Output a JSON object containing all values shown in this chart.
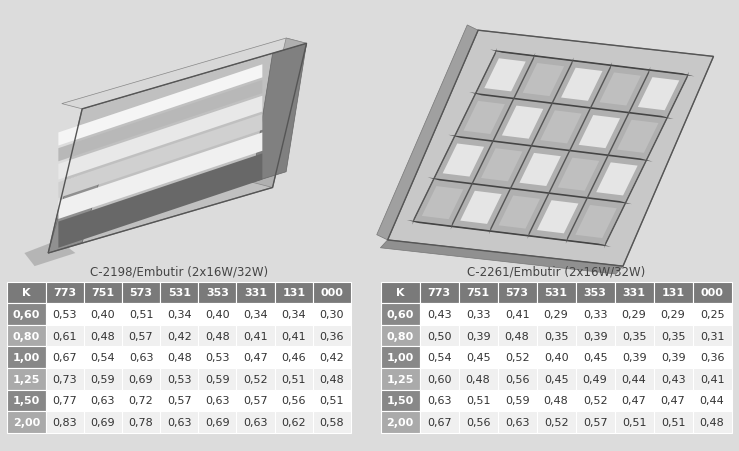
{
  "title1": "C-2198/Embutir (2x16W/32W)",
  "title2": "C-2261/Embutir (2x16W/32W)",
  "headers": [
    "K",
    "773",
    "751",
    "573",
    "531",
    "353",
    "331",
    "131",
    "000"
  ],
  "k_values": [
    "0,60",
    "0,80",
    "1,00",
    "1,25",
    "1,50",
    "2,00"
  ],
  "table1_data": [
    [
      "0,53",
      "0,40",
      "0,51",
      "0,34",
      "0,40",
      "0,34",
      "0,34",
      "0,30"
    ],
    [
      "0,61",
      "0,48",
      "0,57",
      "0,42",
      "0,48",
      "0,41",
      "0,41",
      "0,36"
    ],
    [
      "0,67",
      "0,54",
      "0,63",
      "0,48",
      "0,53",
      "0,47",
      "0,46",
      "0,42"
    ],
    [
      "0,73",
      "0,59",
      "0,69",
      "0,53",
      "0,59",
      "0,52",
      "0,51",
      "0,48"
    ],
    [
      "0,77",
      "0,63",
      "0,72",
      "0,57",
      "0,63",
      "0,57",
      "0,56",
      "0,51"
    ],
    [
      "0,83",
      "0,69",
      "0,78",
      "0,63",
      "0,69",
      "0,63",
      "0,62",
      "0,58"
    ]
  ],
  "table2_data": [
    [
      "0,43",
      "0,33",
      "0,41",
      "0,29",
      "0,33",
      "0,29",
      "0,29",
      "0,25"
    ],
    [
      "0,50",
      "0,39",
      "0,48",
      "0,35",
      "0,39",
      "0,35",
      "0,35",
      "0,31"
    ],
    [
      "0,54",
      "0,45",
      "0,52",
      "0,40",
      "0,45",
      "0,39",
      "0,39",
      "0,36"
    ],
    [
      "0,60",
      "0,48",
      "0,56",
      "0,45",
      "0,49",
      "0,44",
      "0,43",
      "0,41"
    ],
    [
      "0,63",
      "0,51",
      "0,59",
      "0,48",
      "0,52",
      "0,47",
      "0,47",
      "0,44"
    ],
    [
      "0,67",
      "0,56",
      "0,63",
      "0,52",
      "0,57",
      "0,51",
      "0,51",
      "0,48"
    ]
  ],
  "header_bg": "#7a7a7a",
  "header_fg": "#ffffff",
  "k_col_bg_dark": "#888888",
  "k_col_bg_light": "#aaaaaa",
  "k_col_fg": "#ffffff",
  "row_bg_even": "#f0f0f0",
  "row_bg_odd": "#ffffff",
  "bg_color": "#dcdcdc",
  "title_color": "#444444",
  "title_fontsize": 8.5,
  "header_fontsize": 8.0,
  "cell_fontsize": 8.0,
  "img_bg": "#d8d8d8"
}
